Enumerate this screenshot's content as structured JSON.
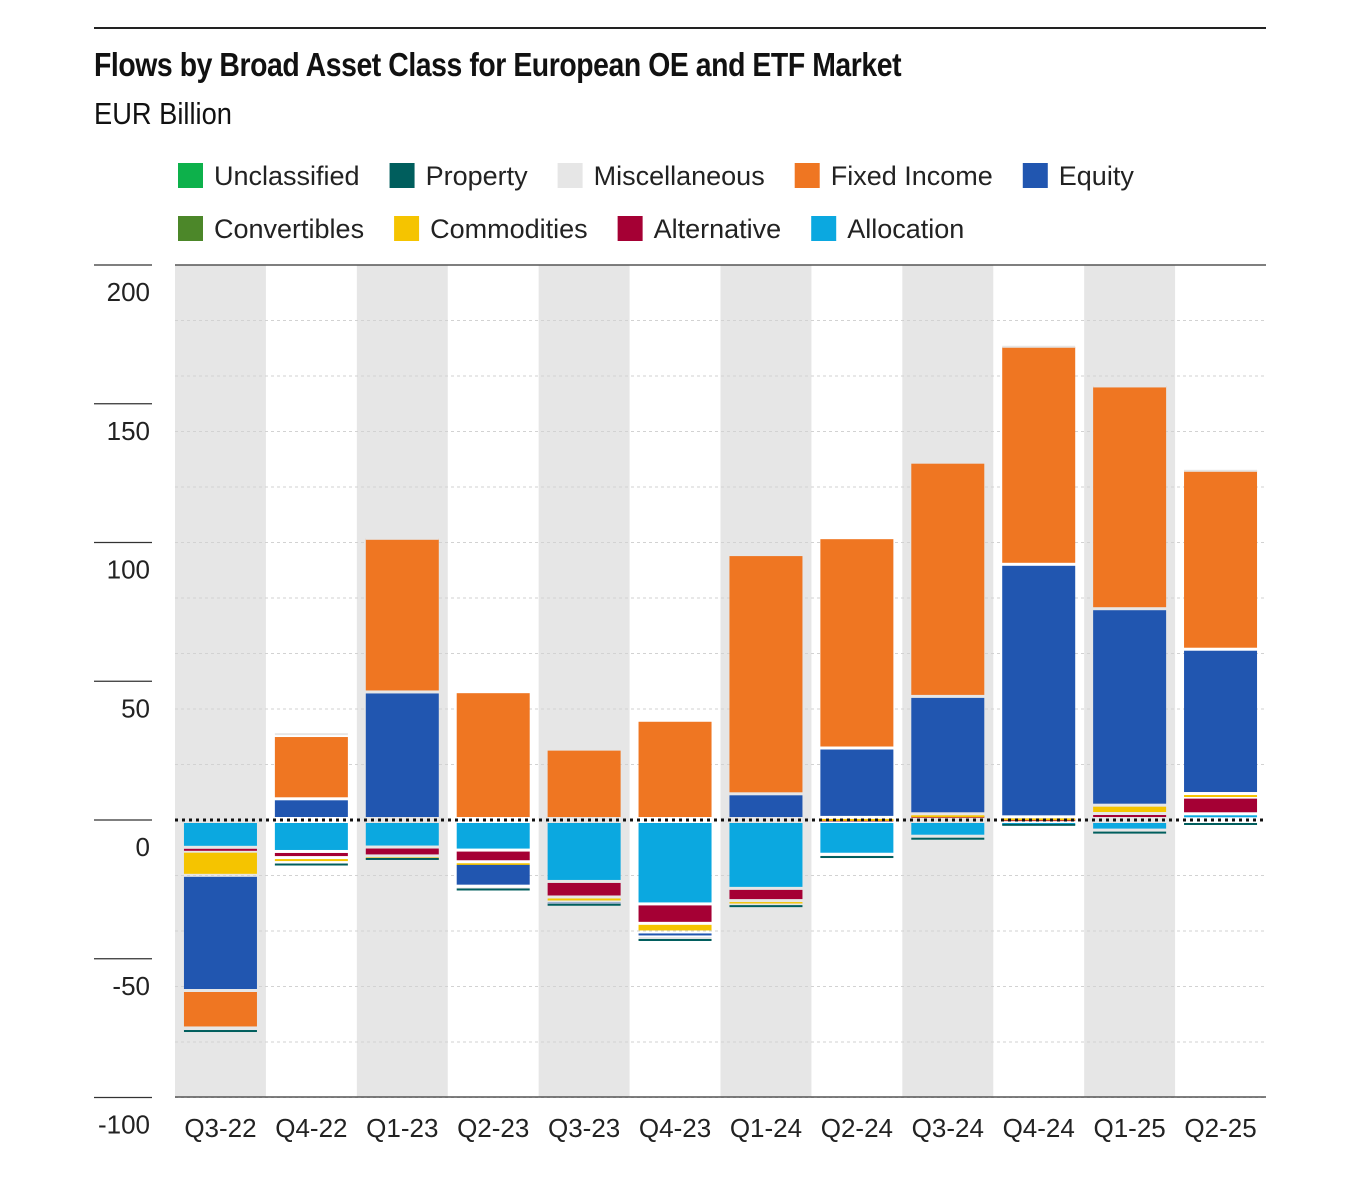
{
  "chart_data": {
    "type": "bar",
    "stacked": true,
    "title": "Flows by Broad Asset Class for European OE and ETF Market",
    "subtitle": "EUR Billion",
    "xlabel": "",
    "ylabel": "",
    "ylim": [
      -100,
      200
    ],
    "yticks": [
      200,
      150,
      100,
      50,
      0,
      -50,
      -100
    ],
    "ytick_labels": [
      "200",
      "150",
      "100",
      "50",
      "0",
      "-50",
      "-100"
    ],
    "grid": true,
    "legend_position": "top",
    "categories": [
      "Q3-22",
      "Q4-22",
      "Q1-23",
      "Q2-23",
      "Q3-23",
      "Q4-23",
      "Q1-24",
      "Q2-24",
      "Q3-24",
      "Q4-24",
      "Q1-25",
      "Q2-25"
    ],
    "series": [
      {
        "name": "Unclassified",
        "color": "#0db14b",
        "values": [
          0,
          0,
          0,
          0,
          0,
          0,
          0,
          0,
          0,
          0,
          0,
          0
        ]
      },
      {
        "name": "Property",
        "color": "#005e5d",
        "values": [
          -0.3,
          -0.2,
          -0.2,
          -0.3,
          -0.4,
          -1.0,
          -0.5,
          -0.2,
          -0.6,
          -1.3,
          -0.6,
          -0.2
        ]
      },
      {
        "name": "Miscellaneous",
        "color": "#e6e6e6",
        "values": [
          -0.2,
          1.4,
          0.3,
          -0.3,
          -0.2,
          -0.7,
          -0.6,
          -0.1,
          1.2,
          0.5,
          0.2,
          0.2
        ]
      },
      {
        "name": "Fixed Income",
        "color": "#ef7622",
        "values": [
          -13.5,
          22.8,
          55.8,
          45.7,
          25.0,
          35.4,
          86.2,
          75.8,
          84.4,
          78.8,
          80.8,
          65.0
        ]
      },
      {
        "name": "Equity",
        "color": "#2156b0",
        "values": [
          -41.5,
          7.1,
          45.6,
          -8.2,
          -0.2,
          -1.3,
          8.9,
          25.0,
          42.3,
          91.0,
          70.8,
          52.0
        ]
      },
      {
        "name": "Convertibles",
        "color": "#4c8729",
        "values": [
          0,
          0,
          0,
          0,
          0,
          0,
          0,
          0,
          0,
          0,
          0,
          0
        ]
      },
      {
        "name": "Commodities",
        "color": "#f5c400",
        "values": [
          -8.7,
          -1.6,
          -0.2,
          -0.6,
          -1.5,
          -3.1,
          -0.5,
          0.2,
          0.2,
          0.3,
          3.0,
          1.3
        ]
      },
      {
        "name": "Alternative",
        "color": "#a50034",
        "values": [
          -1.4,
          -2.2,
          -3.2,
          -4.2,
          -5.6,
          -7.0,
          -4.4,
          0.2,
          1.5,
          0.3,
          1.8,
          6.0
        ]
      },
      {
        "name": "Allocation",
        "color": "#0ba8e0",
        "values": [
          -9.3,
          -10.8,
          -9.2,
          -10.3,
          -21.6,
          -29.7,
          -24.1,
          -11.8,
          -5.3,
          -0.3,
          -3.1,
          1.7
        ]
      }
    ],
    "stack_order": [
      "Allocation",
      "Alternative",
      "Commodities",
      "Convertibles",
      "Equity",
      "Fixed Income",
      "Miscellaneous",
      "Property",
      "Unclassified"
    ]
  }
}
